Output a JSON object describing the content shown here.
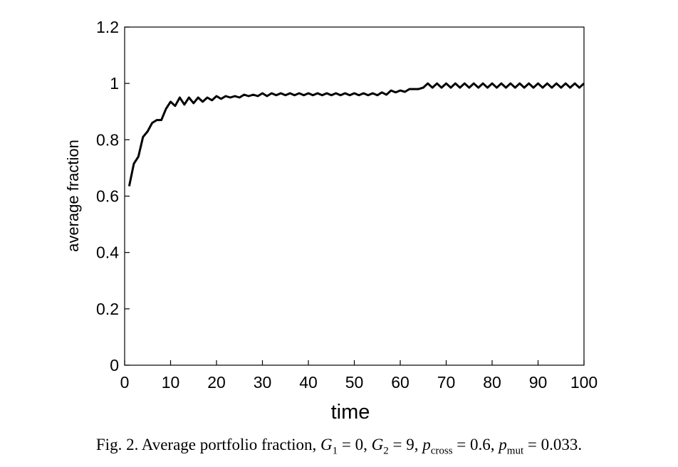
{
  "chart_data": {
    "type": "line",
    "xlabel": "time",
    "ylabel": "average fraction",
    "xlim": [
      0,
      100
    ],
    "ylim": [
      0,
      1.2
    ],
    "xticks": [
      "0",
      "10",
      "20",
      "30",
      "40",
      "50",
      "60",
      "70",
      "80",
      "90",
      "100"
    ],
    "yticks": [
      "0",
      "0.2",
      "0.4",
      "0.6",
      "0.8",
      "1",
      "1.2"
    ],
    "grid": false,
    "series": [
      {
        "x": [
          1,
          2,
          3,
          4,
          5,
          6,
          7,
          8,
          9,
          10,
          11,
          12,
          13,
          14,
          15,
          16,
          17,
          18,
          19,
          20,
          21,
          22,
          23,
          24,
          25,
          26,
          27,
          28,
          29,
          30,
          31,
          32,
          33,
          34,
          35,
          36,
          37,
          38,
          39,
          40,
          41,
          42,
          43,
          44,
          45,
          46,
          47,
          48,
          49,
          50,
          51,
          52,
          53,
          54,
          55,
          56,
          57,
          58,
          59,
          60,
          61,
          62,
          63,
          64,
          65,
          66,
          67,
          68,
          69,
          70,
          71,
          72,
          73,
          74,
          75,
          76,
          77,
          78,
          79,
          80,
          81,
          82,
          83,
          84,
          85,
          86,
          87,
          88,
          89,
          90,
          91,
          92,
          93,
          94,
          95,
          96,
          97,
          98,
          99,
          100
        ],
        "y": [
          0.635,
          0.715,
          0.74,
          0.81,
          0.83,
          0.86,
          0.87,
          0.87,
          0.91,
          0.935,
          0.92,
          0.95,
          0.925,
          0.95,
          0.93,
          0.95,
          0.935,
          0.95,
          0.94,
          0.955,
          0.945,
          0.955,
          0.95,
          0.955,
          0.95,
          0.96,
          0.955,
          0.96,
          0.955,
          0.965,
          0.955,
          0.965,
          0.958,
          0.965,
          0.958,
          0.965,
          0.958,
          0.965,
          0.958,
          0.965,
          0.958,
          0.965,
          0.958,
          0.965,
          0.958,
          0.965,
          0.958,
          0.965,
          0.958,
          0.965,
          0.958,
          0.965,
          0.958,
          0.965,
          0.958,
          0.968,
          0.96,
          0.975,
          0.968,
          0.975,
          0.97,
          0.98,
          0.98,
          0.98,
          0.985,
          1.0,
          0.985,
          1.0,
          0.985,
          1.0,
          0.985,
          1.0,
          0.985,
          1.0,
          0.985,
          1.0,
          0.985,
          1.0,
          0.985,
          1.0,
          0.985,
          1.0,
          0.985,
          1.0,
          0.985,
          1.0,
          0.985,
          1.0,
          0.985,
          1.0,
          0.985,
          1.0,
          0.985,
          1.0,
          0.985,
          1.0,
          0.985,
          1.0,
          0.985,
          1.0
        ]
      }
    ],
    "line_color": "#000000"
  },
  "caption": {
    "prefix": "Fig. 2.  Average portfolio fraction, ",
    "g1_symbol": "G",
    "g1_sub": "1",
    "g1_rest": " = 0, ",
    "g2_symbol": "G",
    "g2_sub": "2",
    "g2_rest": " = 9, ",
    "pc_symbol": "p",
    "pc_sub": "cross",
    "pc_rest": " = 0.6, ",
    "pm_symbol": "p",
    "pm_sub": "mut",
    "pm_rest": " = 0.033."
  }
}
